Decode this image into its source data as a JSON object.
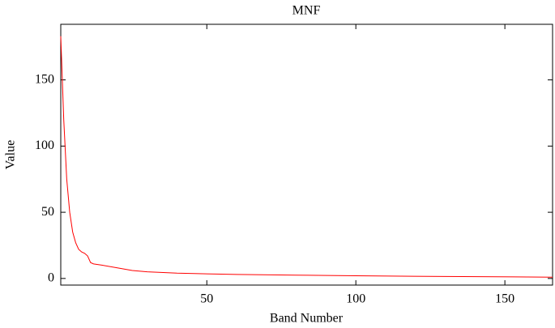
{
  "chart_data": {
    "type": "line",
    "title": "MNF",
    "xlabel": "Band Number",
    "ylabel": "Value",
    "x": [
      1,
      2,
      3,
      4,
      5,
      6,
      7,
      8,
      9,
      10,
      11,
      12,
      15,
      20,
      25,
      30,
      40,
      60,
      80,
      100,
      130,
      166
    ],
    "series": [
      {
        "name": "MNF",
        "color": "#ff0000",
        "values": [
          183,
          120,
          75,
          50,
          35,
          27,
          22,
          20,
          19,
          17,
          12,
          11,
          10,
          8,
          6,
          5,
          4,
          3,
          2.5,
          2,
          1.5,
          1
        ]
      }
    ],
    "xlim": [
      1,
      166
    ],
    "xticks": [
      50,
      100,
      150
    ],
    "ylim": [
      -5,
      192
    ],
    "yticks": [
      0,
      50,
      100,
      150
    ]
  }
}
